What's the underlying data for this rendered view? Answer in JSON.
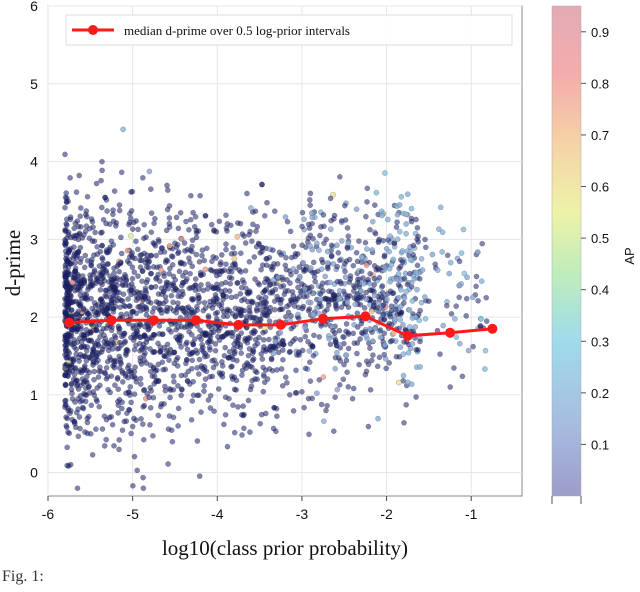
{
  "chart_data": {
    "type": "scatter",
    "xlabel": "log10(class prior probability)",
    "ylabel": "d-prime",
    "xlim": [
      -6,
      -0.4
    ],
    "ylim": [
      -0.3,
      6
    ],
    "x_ticks": [
      -6,
      -5,
      -4,
      -3,
      -2,
      -1
    ],
    "y_ticks": [
      0,
      1,
      2,
      3,
      4,
      5,
      6
    ],
    "grid": true,
    "legend": "top",
    "series": [
      {
        "name": "median d-prime over 0.5 log-prior intervals",
        "type": "line",
        "color": "#ff1a1a",
        "x": [
          -5.75,
          -5.25,
          -4.75,
          -4.25,
          -3.75,
          -3.25,
          -2.75,
          -2.25,
          -1.75,
          -1.25,
          -0.75
        ],
        "y": [
          1.93,
          1.96,
          1.96,
          1.96,
          1.9,
          1.9,
          1.98,
          2.01,
          1.76,
          1.8,
          1.85
        ]
      }
    ],
    "scatter_points": {
      "description_color": "AP",
      "x_range": [
        -5.8,
        -0.8
      ],
      "y_range": [
        -0.2,
        5.4
      ]
    },
    "colorbar": {
      "label": "AP",
      "min": 0,
      "max": 0.95,
      "ticks": [
        "0.1",
        "0.2",
        "0.3",
        "0.4",
        "0.5",
        "0.6",
        "0.7",
        "0.8",
        "0.9"
      ],
      "tick_values": [
        0.1,
        0.2,
        0.3,
        0.4,
        0.5,
        0.6,
        0.7,
        0.8,
        0.9
      ],
      "colors": [
        "#7c7cb8",
        "#8aa6d6",
        "#7fd0e4",
        "#a8e6a6",
        "#e8ee8c",
        "#f2c488",
        "#f09090",
        "#d98f9e"
      ]
    }
  },
  "caption": "Fig. 1:"
}
